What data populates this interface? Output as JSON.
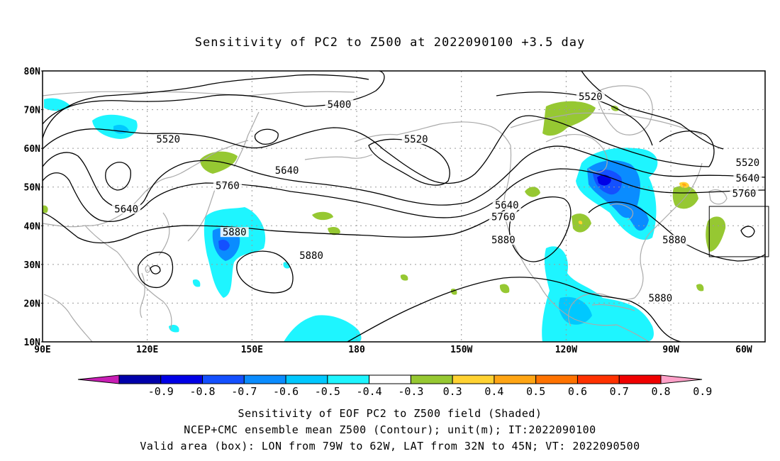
{
  "title": "Sensitivity of PC2 to Z500 at 2022090100 +3.5 day",
  "map": {
    "lon_range": [
      90,
      297
    ],
    "lat_range": [
      10,
      80
    ],
    "lat_ticks": [
      {
        "value": 80,
        "label": "80N"
      },
      {
        "value": 70,
        "label": "70N"
      },
      {
        "value": 60,
        "label": "60N"
      },
      {
        "value": 50,
        "label": "50N"
      },
      {
        "value": 40,
        "label": "40N"
      },
      {
        "value": 30,
        "label": "30N"
      },
      {
        "value": 20,
        "label": "20N"
      },
      {
        "value": 10,
        "label": "10N"
      }
    ],
    "lon_ticks": [
      {
        "value": 90,
        "label": "90E"
      },
      {
        "value": 120,
        "label": "120E"
      },
      {
        "value": 150,
        "label": "150E"
      },
      {
        "value": 180,
        "label": "180"
      },
      {
        "value": 210,
        "label": "150W"
      },
      {
        "value": 240,
        "label": "120W"
      },
      {
        "value": 270,
        "label": "90W"
      },
      {
        "value": 300,
        "label": "60W"
      }
    ],
    "grid": "dotted",
    "valid_box": {
      "lon_min": 281,
      "lon_max": 298,
      "lat_min": 32,
      "lat_max": 45
    },
    "contour_labels": [
      {
        "text": "5400",
        "lon": 175,
        "lat": 71
      },
      {
        "text": "5520",
        "lon": 126,
        "lat": 62
      },
      {
        "text": "5520",
        "lon": 197,
        "lat": 62
      },
      {
        "text": "5520",
        "lon": 247,
        "lat": 73
      },
      {
        "text": "5520",
        "lon": 292,
        "lat": 56
      },
      {
        "text": "5640",
        "lon": 160,
        "lat": 54
      },
      {
        "text": "5640",
        "lon": 114,
        "lat": 44
      },
      {
        "text": "5640",
        "lon": 223,
        "lat": 45
      },
      {
        "text": "5640",
        "lon": 292,
        "lat": 52
      },
      {
        "text": "5760",
        "lon": 143,
        "lat": 50
      },
      {
        "text": "5760",
        "lon": 222,
        "lat": 42
      },
      {
        "text": "5760",
        "lon": 291,
        "lat": 48
      },
      {
        "text": "5880",
        "lon": 145,
        "lat": 38
      },
      {
        "text": "5880",
        "lon": 222,
        "lat": 36
      },
      {
        "text": "5880",
        "lon": 167,
        "lat": 32
      },
      {
        "text": "5880",
        "lon": 271,
        "lat": 36
      },
      {
        "text": "5880",
        "lon": 267,
        "lat": 21
      }
    ]
  },
  "colorbar": {
    "labels": [
      "-0.9",
      "-0.8",
      "-0.7",
      "-0.6",
      "-0.5",
      "-0.4",
      "-0.3",
      "0.3",
      "0.4",
      "0.5",
      "0.6",
      "0.7",
      "0.8",
      "0.9"
    ],
    "colors": [
      "#c81eb4",
      "#0000aa",
      "#0000e6",
      "#1450ff",
      "#0a8cff",
      "#00c8ff",
      "#1ef5ff",
      "#ffffff",
      "#96c832",
      "#ffd232",
      "#ffa514",
      "#ff7300",
      "#ff3200",
      "#f00000",
      "#ffa0c8"
    ]
  },
  "captions": {
    "line1": "Sensitivity of EOF PC2 to Z500 field (Shaded)",
    "line2": "NCEP+CMC ensemble mean Z500 (Contour); unit(m); IT:2022090100",
    "line3": "Valid area (box): LON from 79W to 62W, LAT from 32N to 45N; VT: 2022090500"
  }
}
